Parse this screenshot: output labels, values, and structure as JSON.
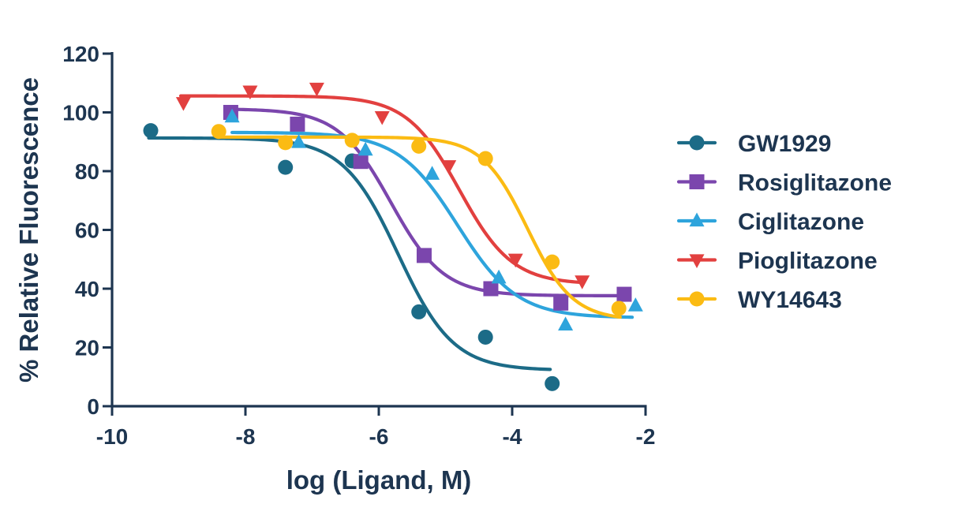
{
  "chart_data": {
    "type": "scatter",
    "xlabel": "log (Ligand, M)",
    "ylabel": "% Relative Fluorescence",
    "xlim": [
      -10,
      -2
    ],
    "ylim": [
      0,
      120
    ],
    "xticks": [
      -10,
      -8,
      -6,
      -4,
      -2
    ],
    "yticks": [
      0,
      20,
      40,
      60,
      80,
      100,
      120
    ],
    "xtick_labels": [
      "-10",
      "-8",
      "-6",
      "-4",
      "-2"
    ],
    "ytick_labels": [
      "0",
      "20",
      "40",
      "60",
      "80",
      "100",
      "120"
    ],
    "legend_position": "right",
    "grid": false,
    "series": [
      {
        "name": "GW1929",
        "color": "#1c6b87",
        "marker": "circle",
        "x": [
          -9.42,
          -7.4,
          -6.4,
          -5.4,
          -4.4,
          -3.4
        ],
        "y": [
          93.8,
          81.3,
          83.5,
          32.1,
          23.5,
          7.7
        ],
        "curve": {
          "top": 91.3,
          "bottom": 12.2,
          "logec50": -5.71,
          "hill": 1.05,
          "xmin": -9.45,
          "xmax": -3.43
        }
      },
      {
        "name": "Rosiglitazone",
        "color": "#7b46ad",
        "marker": "square",
        "x": [
          -8.22,
          -7.22,
          -6.27,
          -5.32,
          -4.32,
          -3.27,
          -2.32
        ],
        "y": [
          100,
          96,
          83.3,
          51.3,
          40,
          35.1,
          38.1
        ],
        "curve": {
          "top": 101.2,
          "bottom": 37.6,
          "logec50": -5.82,
          "hill": 1.1,
          "xmin": -8.22,
          "xmax": -2.28
        }
      },
      {
        "name": "Ciglitazone",
        "color": "#2ea4dc",
        "marker": "triangle",
        "x": [
          -8.2,
          -7.2,
          -6.2,
          -5.2,
          -4.2,
          -3.2,
          -2.15
        ],
        "y": [
          98.5,
          89.8,
          87.2,
          79,
          43.7,
          27.7,
          34.2
        ],
        "curve": {
          "top": 93.2,
          "bottom": 30.1,
          "logec50": -4.82,
          "hill": 0.97,
          "xmin": -8.2,
          "xmax": -2.2
        }
      },
      {
        "name": "Pioglitazone",
        "color": "#e2403f",
        "marker": "triangle-down",
        "x": [
          -8.93,
          -7.93,
          -6.93,
          -5.95,
          -4.95,
          -3.95,
          -2.95
        ],
        "y": [
          103.3,
          107.2,
          108.2,
          98.5,
          81.8,
          50,
          42.6
        ],
        "curve": {
          "top": 105.6,
          "bottom": 41.5,
          "logec50": -4.79,
          "hill": 1.1,
          "xmin": -8.97,
          "xmax": -2.95
        }
      },
      {
        "name": "WY14643",
        "color": "#fbbb13",
        "marker": "circle",
        "x": [
          -8.4,
          -7.4,
          -6.4,
          -5.4,
          -4.4,
          -3.4,
          -2.4
        ],
        "y": [
          93.5,
          89.7,
          90.5,
          88.5,
          84.3,
          49.1,
          33.3
        ],
        "curve": {
          "top": 91.6,
          "bottom": 29.3,
          "logec50": -3.77,
          "hill": 1.28,
          "xmin": -8.38,
          "xmax": -2.38
        }
      }
    ]
  }
}
